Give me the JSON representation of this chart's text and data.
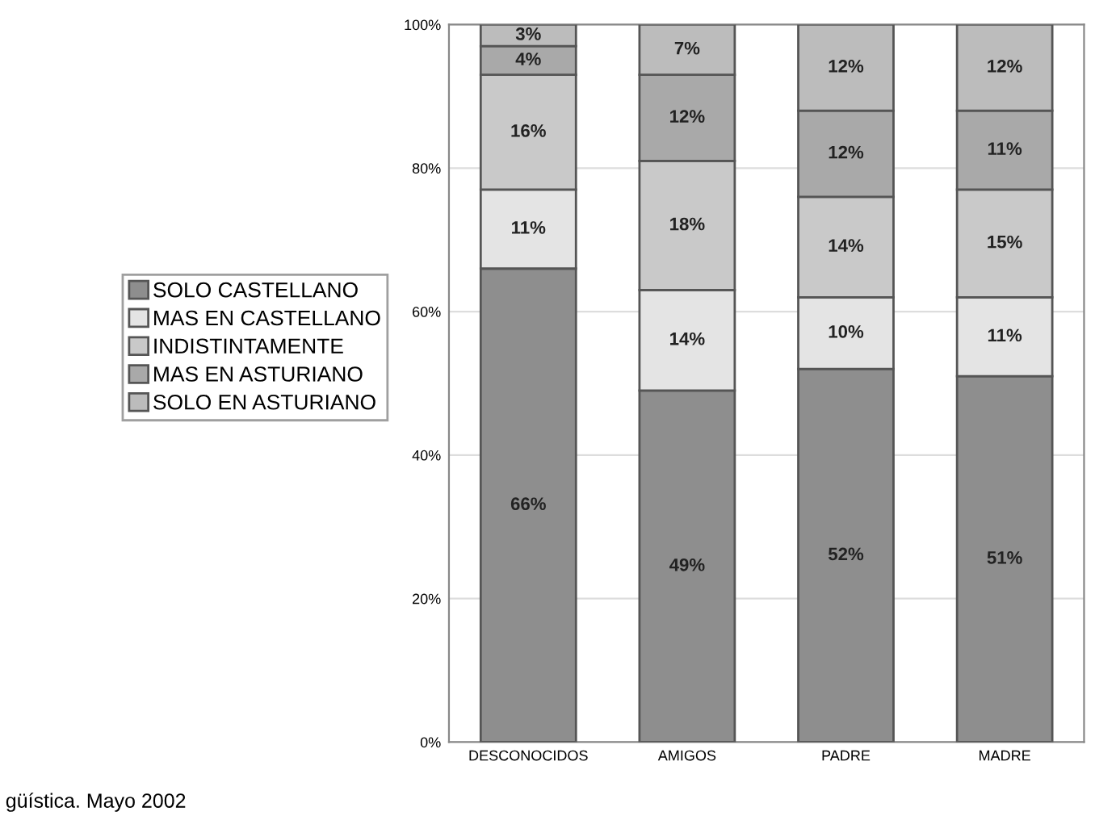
{
  "chart_data": {
    "type": "bar",
    "stacked": true,
    "categories": [
      "DESCONOCIDOS",
      "AMIGOS",
      "PADRE",
      "MADRE"
    ],
    "series": [
      {
        "name": "SOLO CASTELLANO",
        "color": "#8e8e8e",
        "values": [
          66,
          49,
          52,
          51
        ],
        "value_labels": [
          "66%",
          "49%",
          "52%",
          "51%"
        ]
      },
      {
        "name": "MAS EN CASTELLANO",
        "color": "#e4e4e4",
        "values": [
          11,
          14,
          10,
          11
        ],
        "value_labels": [
          "11%",
          "14%",
          "10%",
          "11%"
        ]
      },
      {
        "name": "INDISTINTAMENTE",
        "color": "#c9c9c9",
        "values": [
          16,
          18,
          14,
          15
        ],
        "value_labels": [
          "16%",
          "18%",
          "14%",
          "15%"
        ]
      },
      {
        "name": "MAS EN ASTURIANO",
        "color": "#a9a9a9",
        "values": [
          4,
          12,
          12,
          11
        ],
        "value_labels": [
          "4%",
          "12%",
          "12%",
          "11%"
        ]
      },
      {
        "name": "SOLO EN ASTURIANO",
        "color": "#bcbcbc",
        "values": [
          3,
          7,
          12,
          12
        ],
        "value_labels": [
          "3%",
          "7%",
          "12%",
          "12%"
        ]
      }
    ],
    "ylim": [
      0,
      100
    ],
    "yticks": [
      {
        "value": 0,
        "label": "0%"
      },
      {
        "value": 20,
        "label": "20%"
      },
      {
        "value": 40,
        "label": "40%"
      },
      {
        "value": 60,
        "label": "60%"
      },
      {
        "value": 80,
        "label": "80%"
      },
      {
        "value": 100,
        "label": "100%"
      }
    ],
    "grid": "y",
    "legend": "left",
    "annotations": [
      "güística. Mayo 2002"
    ]
  }
}
